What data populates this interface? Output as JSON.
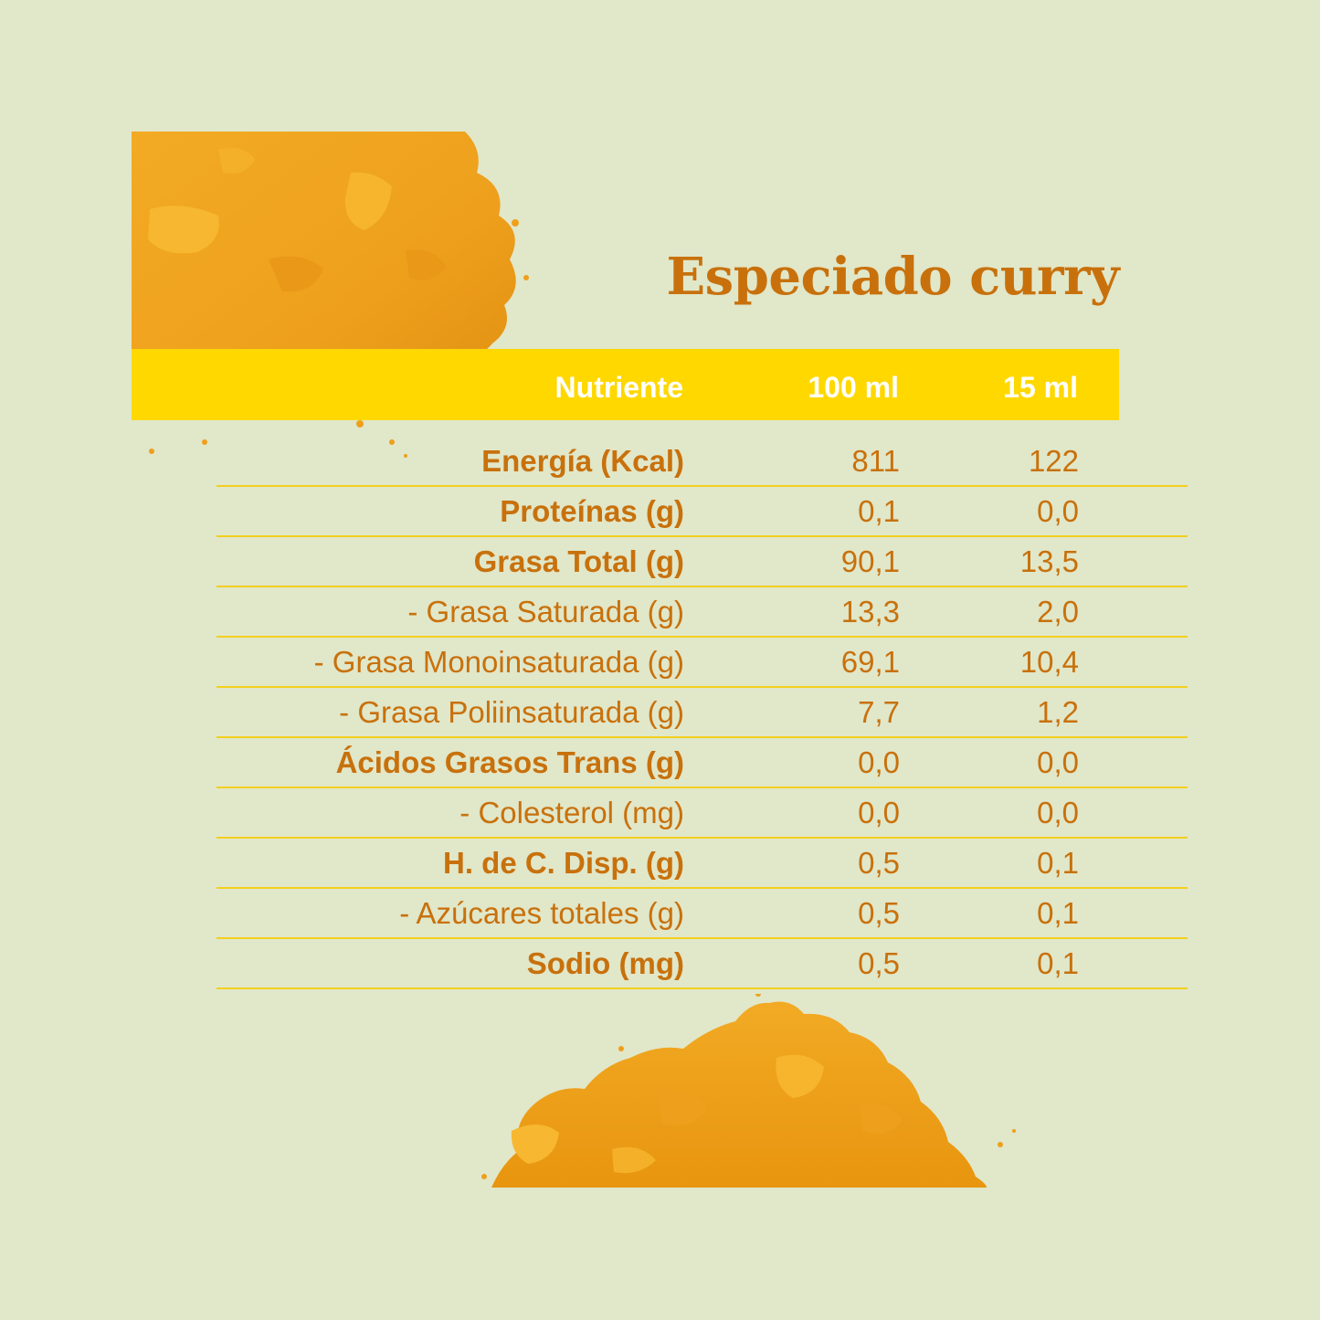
{
  "title": "Especiado curry",
  "table": {
    "headers": {
      "nutrient": "Nutriente",
      "per_100": "100 ml",
      "per_15": "15 ml"
    },
    "rows": [
      {
        "label": "Energía (Kcal)",
        "v100": "811",
        "v15": "122",
        "bold": true
      },
      {
        "label": "Proteínas (g)",
        "v100": "0,1",
        "v15": "0,0",
        "bold": true
      },
      {
        "label": "Grasa Total (g)",
        "v100": "90,1",
        "v15": "13,5",
        "bold": true
      },
      {
        "label": "- Grasa Saturada (g)",
        "v100": "13,3",
        "v15": "2,0",
        "bold": false
      },
      {
        "label": "- Grasa Monoinsaturada (g)",
        "v100": "69,1",
        "v15": "10,4",
        "bold": false
      },
      {
        "label": "- Grasa Poliinsaturada (g)",
        "v100": "7,7",
        "v15": "1,2",
        "bold": false
      },
      {
        "label": "Ácidos Grasos Trans (g)",
        "v100": "0,0",
        "v15": "0,0",
        "bold": true
      },
      {
        "label": "- Colesterol (mg)",
        "v100": "0,0",
        "v15": "0,0",
        "bold": false
      },
      {
        "label": "H. de C. Disp. (g)",
        "v100": "0,5",
        "v15": "0,1",
        "bold": true
      },
      {
        "label": "- Azúcares totales (g)",
        "v100": "0,5",
        "v15": "0,1",
        "bold": false
      },
      {
        "label": "Sodio (mg)",
        "v100": "0,5",
        "v15": "0,1",
        "bold": true
      }
    ]
  },
  "colors": {
    "background": "#e1e7c9",
    "accent": "#c8710c",
    "header_bar": "#ffd800",
    "divider": "#f3cf1e",
    "powder": "#f0a21c"
  },
  "images": {
    "top": "curry-powder-pile",
    "bottom": "curry-powder-heap"
  }
}
